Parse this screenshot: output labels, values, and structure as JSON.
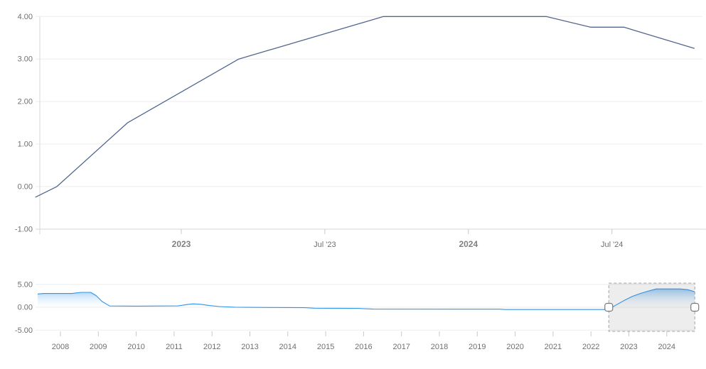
{
  "app": {
    "title": "",
    "description": "interest-rate stock chart with range navigator"
  },
  "colors": {
    "background": "#ffffff",
    "main_line": "#54678f",
    "grid_line": "#ededed",
    "axis_line": "#d9d9d9",
    "tick_mark": "#c9c9c9",
    "label_text": "#6f6f6f",
    "bold_label_text": "#808080",
    "nav_line": "#2f94ec",
    "nav_fill_top": "#64aff0",
    "nav_fill_bottom": "#ffffff",
    "selection_fill": "rgba(110,110,110,0.12)",
    "selection_border": "#a3a3a3",
    "handle_fill": "#ffffff",
    "handle_border": "#7a7a7a"
  },
  "main_chart": {
    "y_axis_labels": [
      {
        "label": "4.00",
        "value": 4
      },
      {
        "label": "3.00",
        "value": 3
      },
      {
        "label": "2.00",
        "value": 2
      },
      {
        "label": "1.00",
        "value": 1
      },
      {
        "label": "0.00",
        "value": 0
      },
      {
        "label": "-1.00",
        "value": -1
      }
    ],
    "x_axis_labels": [
      {
        "label": "2023",
        "bold": true,
        "t": 0
      },
      {
        "label": "Jul '23",
        "bold": false,
        "t": 6
      },
      {
        "label": "2024",
        "bold": true,
        "t": 12
      },
      {
        "label": "Jul '24",
        "bold": false,
        "t": 18
      }
    ]
  },
  "navigator": {
    "y_axis_labels": [
      {
        "label": "5.00",
        "value": 5
      },
      {
        "label": "0.00",
        "value": 0
      },
      {
        "label": "-5.00",
        "value": -5
      }
    ],
    "x_axis_labels": [
      "2008",
      "2009",
      "2010",
      "2011",
      "2012",
      "2013",
      "2014",
      "2015",
      "2016",
      "2017",
      "2018",
      "2019",
      "2020",
      "2021",
      "2022",
      "2023",
      "2024"
    ],
    "selected_range": {
      "from_year": 2022.47,
      "to_year": 2024.74
    }
  },
  "chart_data": [
    {
      "id": "main",
      "type": "line",
      "title": "",
      "xlabel": "",
      "ylabel": "",
      "ylim": [
        -1.0,
        4.17
      ],
      "x_tick_labels": [
        "2023",
        "Jul '23",
        "2024",
        "Jul '24"
      ],
      "y_tick_labels": [
        "4.00",
        "3.00",
        "2.00",
        "1.00",
        "0.00",
        "-1.00"
      ],
      "grid": true,
      "legend": false,
      "points": [
        {
          "date": "2022-06",
          "t": -6.1,
          "value": -0.25
        },
        {
          "date": "2022-08",
          "t": -5.2,
          "value": 0.0
        },
        {
          "date": "2022-10",
          "t": -2.25,
          "value": 1.5
        },
        {
          "date": "2023-03",
          "t": 2.4,
          "value": 3.0
        },
        {
          "date": "2023-09",
          "t": 8.45,
          "value": 4.0
        },
        {
          "date": "2024-04",
          "t": 15.25,
          "value": 4.0
        },
        {
          "date": "2024-06",
          "t": 17.1,
          "value": 3.75
        },
        {
          "date": "2024-07",
          "t": 18.5,
          "value": 3.75
        },
        {
          "date": "2024-10",
          "t": 21.45,
          "value": 3.25
        }
      ]
    },
    {
      "id": "navigator",
      "type": "area",
      "title": "",
      "ylim": [
        -5,
        5
      ],
      "x_tick_labels": [
        "2008",
        "2009",
        "2010",
        "2011",
        "2012",
        "2013",
        "2014",
        "2015",
        "2016",
        "2017",
        "2018",
        "2019",
        "2020",
        "2021",
        "2022",
        "2023",
        "2024"
      ],
      "y_tick_labels": [
        "5.00",
        "0.00",
        "-5.00"
      ],
      "selected_range_years": [
        2022.47,
        2024.74
      ],
      "points": [
        [
          2007.4,
          2.9
        ],
        [
          2007.55,
          3.0
        ],
        [
          2008.3,
          3.0
        ],
        [
          2008.55,
          3.25
        ],
        [
          2008.8,
          3.25
        ],
        [
          2008.95,
          2.5
        ],
        [
          2009.1,
          1.25
        ],
        [
          2009.3,
          0.28
        ],
        [
          2010.0,
          0.25
        ],
        [
          2011.1,
          0.3
        ],
        [
          2011.35,
          0.6
        ],
        [
          2011.5,
          0.75
        ],
        [
          2011.7,
          0.65
        ],
        [
          2011.95,
          0.35
        ],
        [
          2012.2,
          0.15
        ],
        [
          2012.6,
          0.02
        ],
        [
          2013.5,
          -0.05
        ],
        [
          2014.45,
          -0.1
        ],
        [
          2014.7,
          -0.2
        ],
        [
          2015.85,
          -0.25
        ],
        [
          2016.25,
          -0.4
        ],
        [
          2019.6,
          -0.42
        ],
        [
          2019.75,
          -0.5
        ],
        [
          2022.45,
          -0.5
        ],
        [
          2022.6,
          0.2
        ],
        [
          2022.75,
          0.9
        ],
        [
          2022.9,
          1.6
        ],
        [
          2023.1,
          2.4
        ],
        [
          2023.3,
          3.0
        ],
        [
          2023.5,
          3.5
        ],
        [
          2023.72,
          4.0
        ],
        [
          2024.35,
          4.0
        ],
        [
          2024.55,
          3.85
        ],
        [
          2024.74,
          3.4
        ]
      ]
    }
  ]
}
